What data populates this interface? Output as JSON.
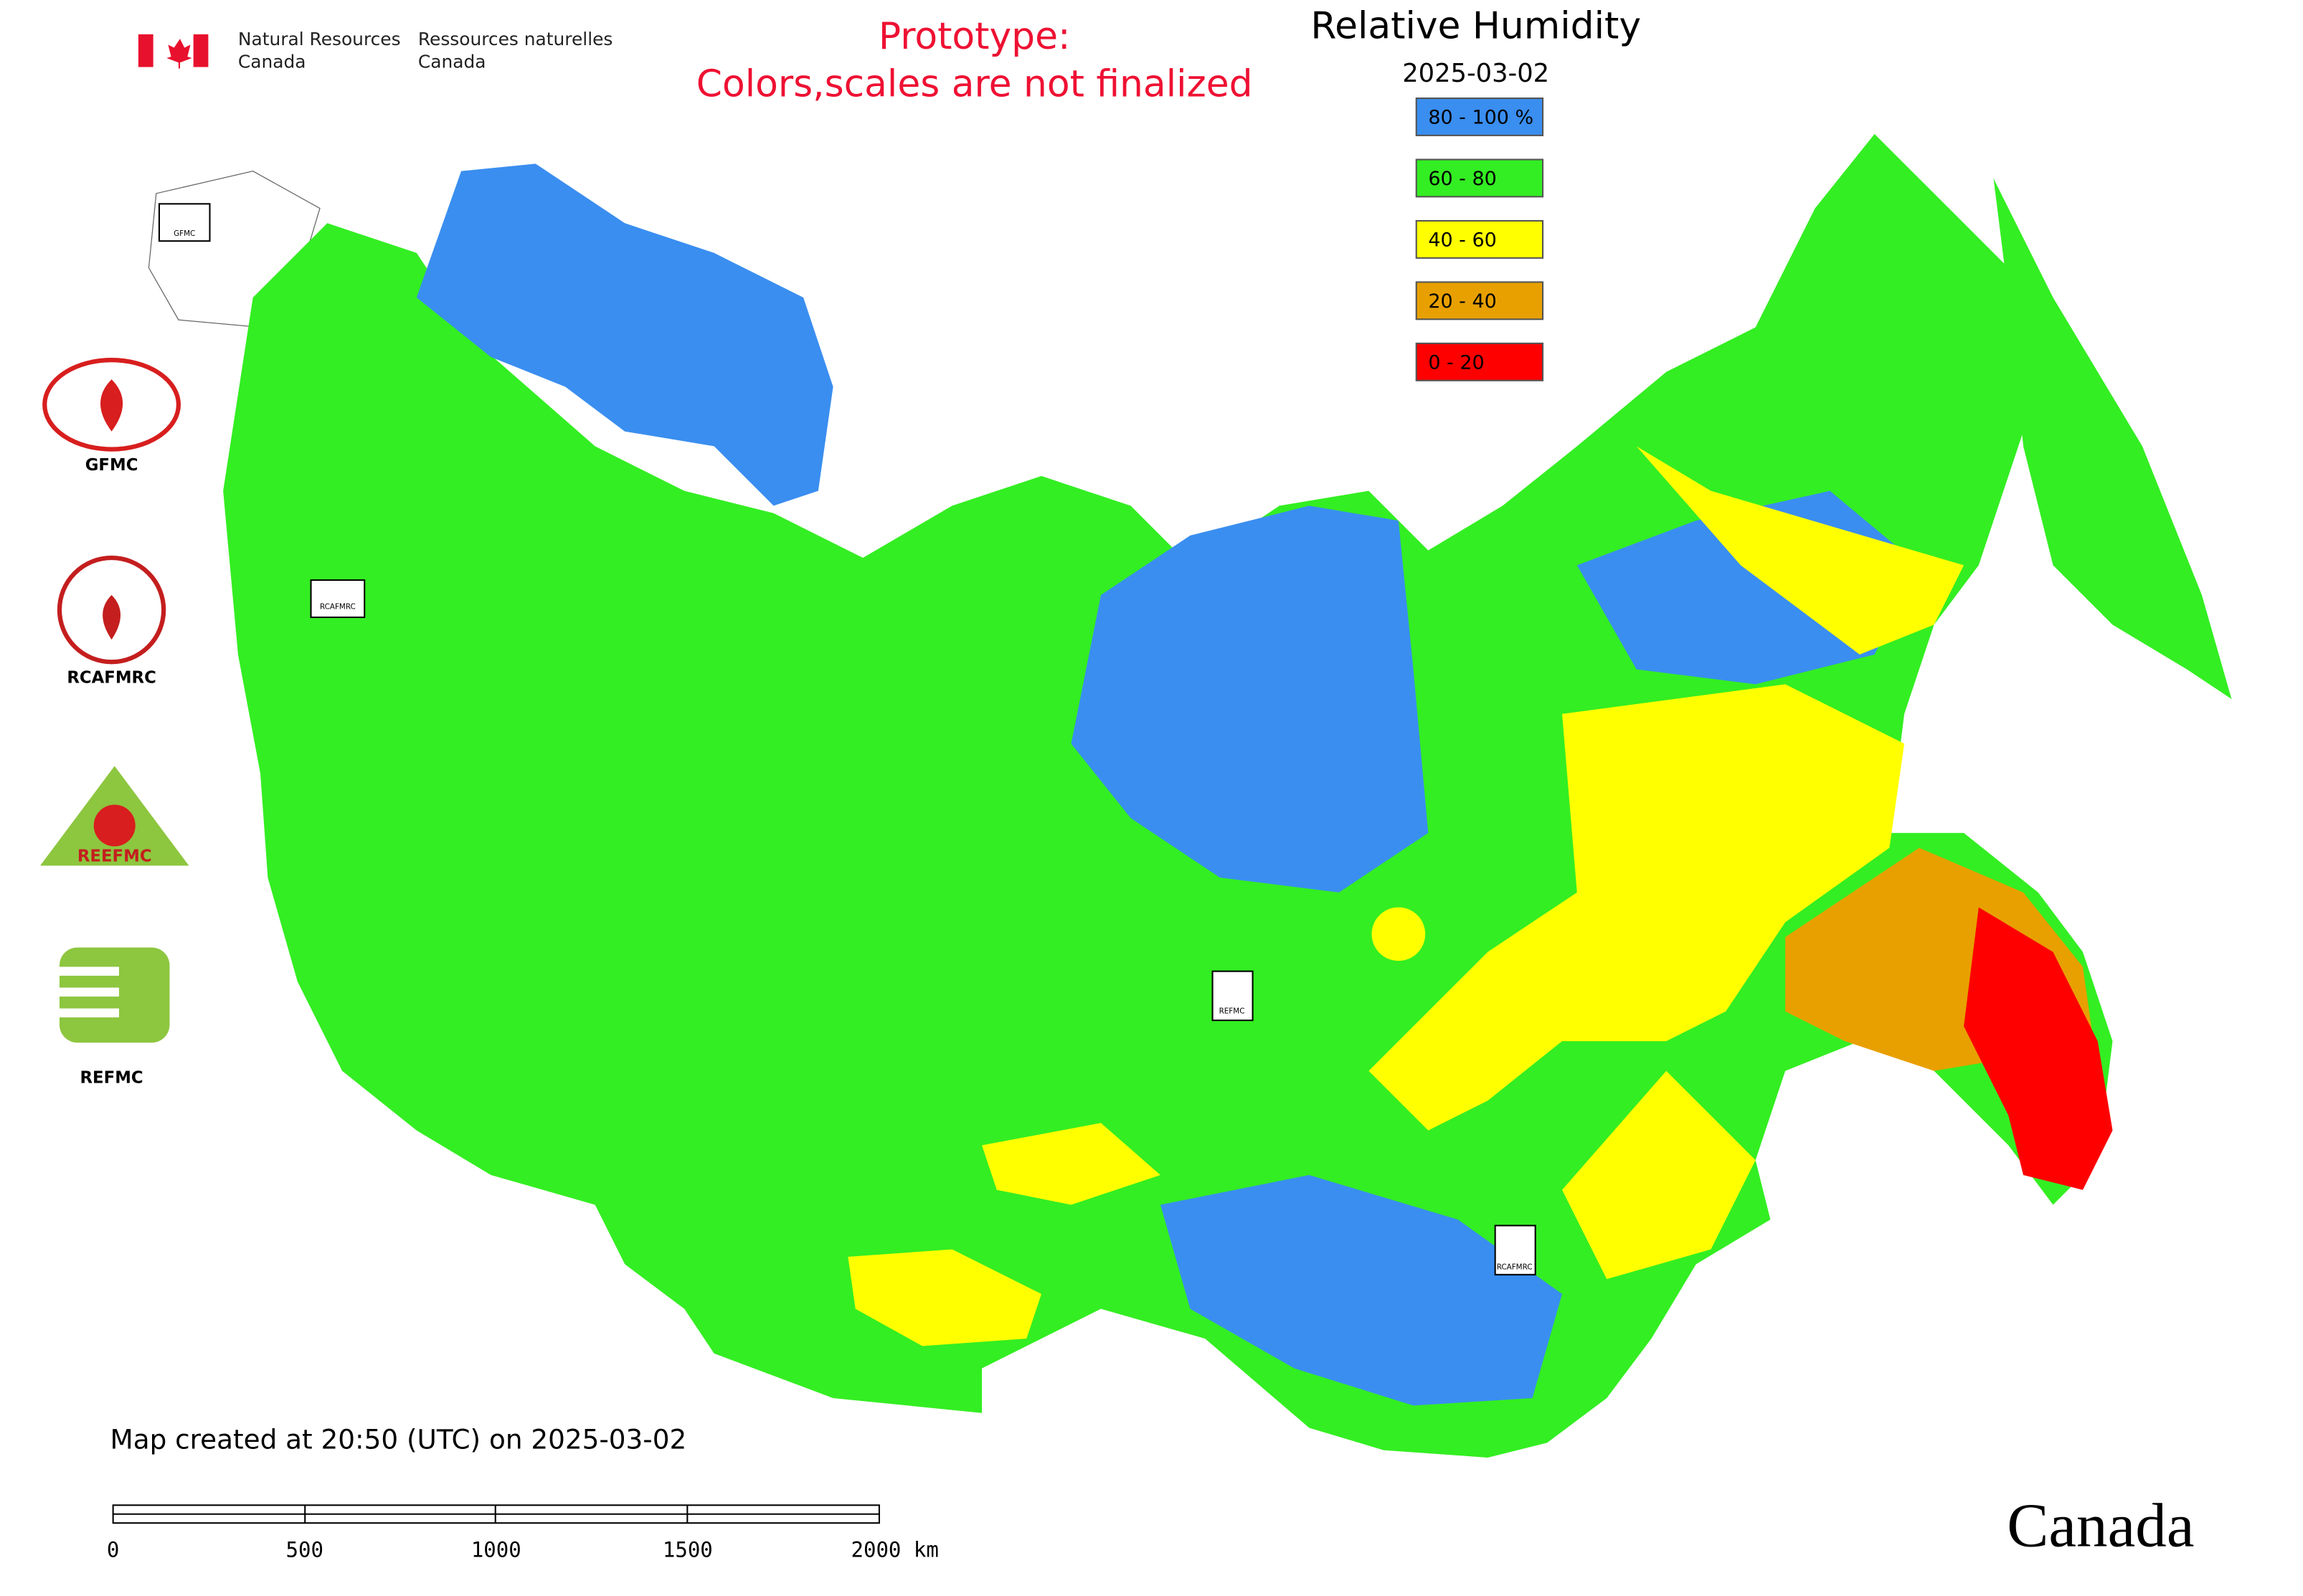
{
  "header": {
    "agency_en": [
      "Natural Resources",
      "Canada"
    ],
    "agency_fr": [
      "Ressources naturelles",
      "Canada"
    ],
    "notice": [
      "Prototype:",
      "Colors,scales are not finalized"
    ]
  },
  "legend": {
    "title": "Relative Humidity",
    "date": "2025-03-02",
    "items": [
      {
        "label": "80 - 100 %",
        "color": "#3a8ef0"
      },
      {
        "label": "60 - 80",
        "color": "#33ee22"
      },
      {
        "label": "40 - 60",
        "color": "#ffff00"
      },
      {
        "label": "20 - 40",
        "color": "#e8a000"
      },
      {
        "label": "0 - 20",
        "color": "#ff0000"
      }
    ]
  },
  "logos": {
    "gfmc": "GFMC",
    "rcafmrc": "RCAFMRC",
    "reefmc": "REEFMC",
    "refmc": "REFMC"
  },
  "map_markers": [
    "GFMC",
    "RCAFMRC",
    "REFMC",
    "RCAFMRC"
  ],
  "footer": {
    "created": "Map created at 20:50 (UTC) on 2025-03-02",
    "scale_labels": [
      "0",
      "500",
      "1000",
      "1500",
      "2000 km"
    ],
    "wordmark": "Canada"
  }
}
